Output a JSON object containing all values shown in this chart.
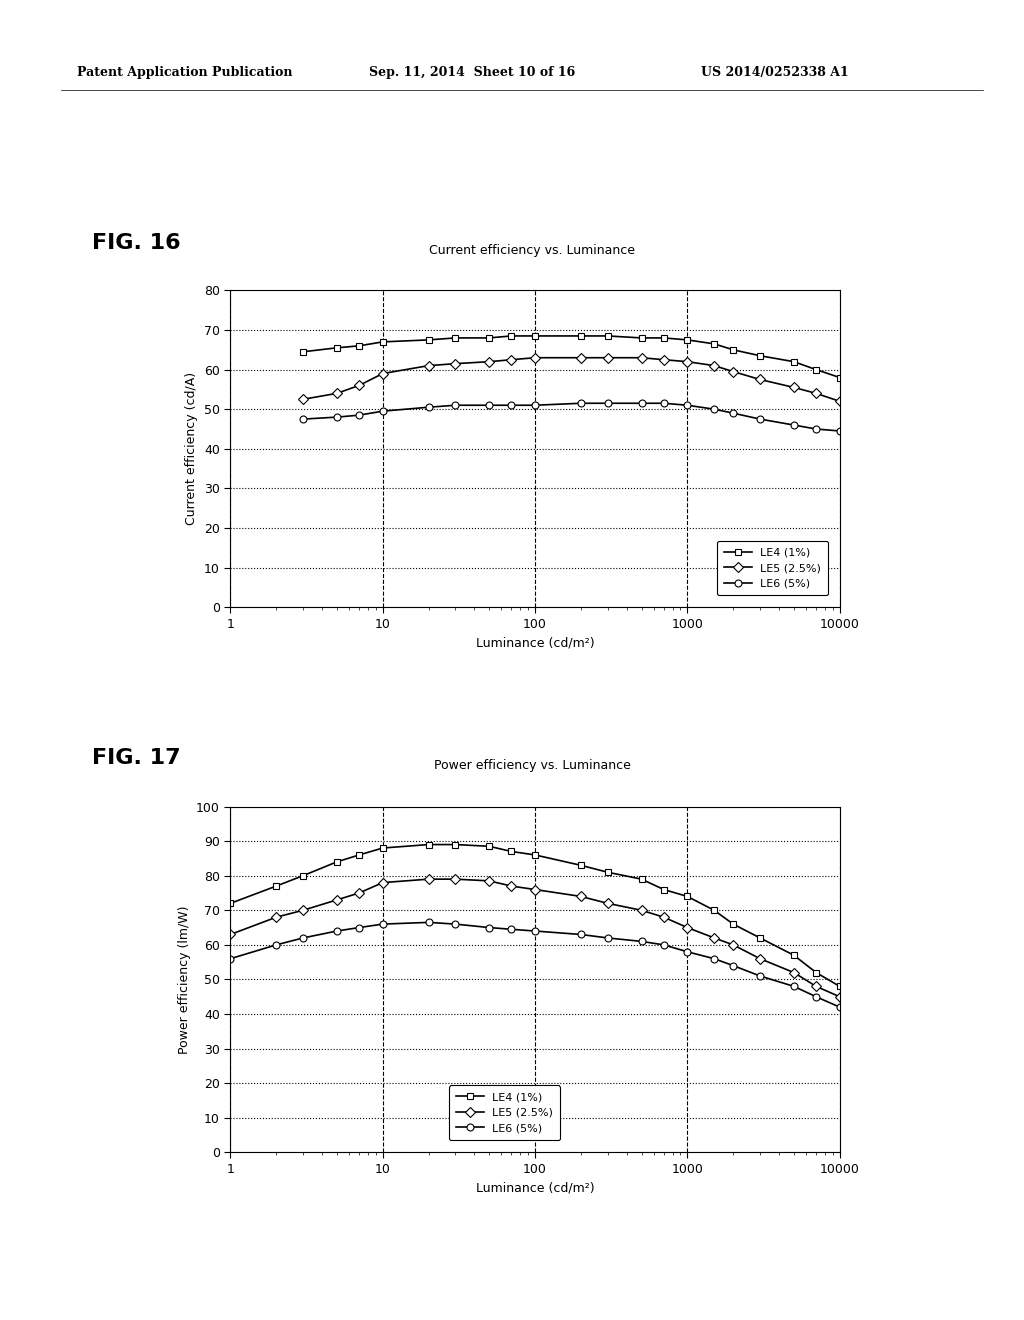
{
  "header_left": "Patent Application Publication",
  "header_mid": "Sep. 11, 2014  Sheet 10 of 16",
  "header_right": "US 2014/0252338 A1",
  "fig16_title": "Current efficiency vs. Luminance",
  "fig16_label": "FIG. 16",
  "fig16_ylabel": "Current efficiency (cd/A)",
  "fig16_xlabel": "Luminance (cd/m²)",
  "fig16_ylim": [
    0,
    80
  ],
  "fig16_yticks": [
    0,
    10,
    20,
    30,
    40,
    50,
    60,
    70,
    80
  ],
  "fig17_title": "Power efficiency vs. Luminance",
  "fig17_label": "FIG. 17",
  "fig17_ylabel": "Power efficiency (lm/W)",
  "fig17_xlabel": "Luminance (cd/m²)",
  "fig17_ylim": [
    0,
    100
  ],
  "fig17_yticks": [
    0,
    10,
    20,
    30,
    40,
    50,
    60,
    70,
    80,
    90,
    100
  ],
  "xlim": [
    1,
    10000
  ],
  "xticks": [
    1,
    10,
    100,
    1000,
    10000
  ],
  "legend_labels": [
    "LE4 (1%)",
    "LE5 (2.5%)",
    "LE6 (5%)"
  ],
  "LE4_marker": "s",
  "LE5_marker": "D",
  "LE6_marker": "o",
  "fig16_LE4_x": [
    3,
    5,
    7,
    10,
    20,
    30,
    50,
    70,
    100,
    200,
    300,
    500,
    700,
    1000,
    1500,
    2000,
    3000,
    5000,
    7000,
    10000
  ],
  "fig16_LE4_y": [
    64.5,
    65.5,
    66,
    67,
    67.5,
    68,
    68,
    68.5,
    68.5,
    68.5,
    68.5,
    68,
    68,
    67.5,
    66.5,
    65,
    63.5,
    62,
    60,
    58
  ],
  "fig16_LE5_x": [
    3,
    5,
    7,
    10,
    20,
    30,
    50,
    70,
    100,
    200,
    300,
    500,
    700,
    1000,
    1500,
    2000,
    3000,
    5000,
    7000,
    10000
  ],
  "fig16_LE5_y": [
    52.5,
    54,
    56,
    59,
    61,
    61.5,
    62,
    62.5,
    63,
    63,
    63,
    63,
    62.5,
    62,
    61,
    59.5,
    57.5,
    55.5,
    54,
    52
  ],
  "fig16_LE6_x": [
    3,
    5,
    7,
    10,
    20,
    30,
    50,
    70,
    100,
    200,
    300,
    500,
    700,
    1000,
    1500,
    2000,
    3000,
    5000,
    7000,
    10000
  ],
  "fig16_LE6_y": [
    47.5,
    48,
    48.5,
    49.5,
    50.5,
    51,
    51,
    51,
    51,
    51.5,
    51.5,
    51.5,
    51.5,
    51,
    50,
    49,
    47.5,
    46,
    45,
    44.5
  ],
  "fig17_LE4_x": [
    1,
    2,
    3,
    5,
    7,
    10,
    20,
    30,
    50,
    70,
    100,
    200,
    300,
    500,
    700,
    1000,
    1500,
    2000,
    3000,
    5000,
    7000,
    10000
  ],
  "fig17_LE4_y": [
    72,
    77,
    80,
    84,
    86,
    88,
    89,
    89,
    88.5,
    87,
    86,
    83,
    81,
    79,
    76,
    74,
    70,
    66,
    62,
    57,
    52,
    48
  ],
  "fig17_LE5_x": [
    1,
    2,
    3,
    5,
    7,
    10,
    20,
    30,
    50,
    70,
    100,
    200,
    300,
    500,
    700,
    1000,
    1500,
    2000,
    3000,
    5000,
    7000,
    10000
  ],
  "fig17_LE5_y": [
    63,
    68,
    70,
    73,
    75,
    78,
    79,
    79,
    78.5,
    77,
    76,
    74,
    72,
    70,
    68,
    65,
    62,
    60,
    56,
    52,
    48,
    45
  ],
  "fig17_LE6_x": [
    1,
    2,
    3,
    5,
    7,
    10,
    20,
    30,
    50,
    70,
    100,
    200,
    300,
    500,
    700,
    1000,
    1500,
    2000,
    3000,
    5000,
    7000,
    10000
  ],
  "fig17_LE6_y": [
    56,
    60,
    62,
    64,
    65,
    66,
    66.5,
    66,
    65,
    64.5,
    64,
    63,
    62,
    61,
    60,
    58,
    56,
    54,
    51,
    48,
    45,
    42
  ],
  "background_color": "#ffffff",
  "line_color": "#000000",
  "marker_size": 5,
  "linewidth": 1.2
}
